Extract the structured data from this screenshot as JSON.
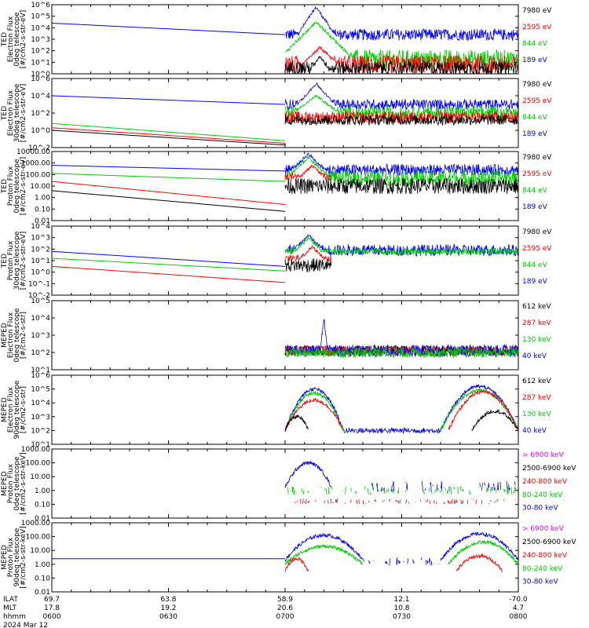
{
  "colors": {
    "black": "#000000",
    "red": "#ff0000",
    "green": "#00cc00",
    "blue": "#0000ff",
    "magenta": "#ff00ff"
  },
  "footer": {
    "row_labels": [
      "ILAT",
      "MLT",
      "hhmm"
    ],
    "date": "2024 Mar 12",
    "columns": [
      {
        "t": 0,
        "ilat": "69.7",
        "mlt": "17.8",
        "hhmm": "0600"
      },
      {
        "t": 30,
        "ilat": "63.8",
        "mlt": "19.2",
        "hhmm": "0630"
      },
      {
        "t": 60,
        "ilat": "58.9",
        "mlt": "20.6",
        "hhmm": "0700"
      },
      {
        "t": 90,
        "ilat": "12.1",
        "mlt": "10.8",
        "hhmm": "0730"
      },
      {
        "t": 120,
        "ilat": "-70.0",
        "mlt": "4.7",
        "hhmm": "0800"
      }
    ]
  },
  "chart_data": [
    {
      "type": "line",
      "ylog": true,
      "ylabel": [
        "TED",
        "Electron Flux",
        "0deg telescope",
        "[#/cm2-s-str-eV]"
      ],
      "ytick_labels": [
        "10^0",
        "10^1",
        "10^2",
        "10^3",
        "10^4",
        "10^5",
        "10^6"
      ],
      "ylim_exp": [
        0,
        6
      ],
      "xlim_minutes": [
        0,
        120
      ],
      "legend": [
        {
          "label": "7980 eV",
          "color": "black"
        },
        {
          "label": "2595 eV",
          "color": "red"
        },
        {
          "label": "844 eV",
          "color": "green"
        },
        {
          "label": "189 eV",
          "color": "blue"
        }
      ],
      "series": [
        {
          "color": "blue",
          "trend": [
            [
              0,
              4.4
            ],
            [
              60,
              3.4
            ]
          ],
          "noisy": {
            "base": 3.4,
            "amp": 0.5,
            "from": 60,
            "to": 120
          },
          "peaks": [
            {
              "t": 68,
              "y": 5.8,
              "w": 2
            }
          ]
        },
        {
          "color": "green",
          "noisy": {
            "base": 1.2,
            "amp": 0.9,
            "from": 60,
            "to": 120
          },
          "peaks": [
            {
              "t": 68,
              "y": 4.5,
              "w": 3
            }
          ]
        },
        {
          "color": "red",
          "noisy": {
            "base": 0.8,
            "amp": 0.8,
            "from": 60,
            "to": 120
          },
          "peaks": [
            {
              "t": 69,
              "y": 2.3,
              "w": 3
            }
          ]
        },
        {
          "color": "black",
          "noisy": {
            "base": 0.5,
            "amp": 0.6,
            "from": 60,
            "to": 120
          },
          "peaks": [
            {
              "t": 69,
              "y": 1.5,
              "w": 2
            }
          ]
        }
      ]
    },
    {
      "type": "line",
      "ylog": true,
      "ylabel": [
        "TED",
        "Electron Flux",
        "30deg telescope",
        "[#/cm2-s-str-eV]"
      ],
      "ytick_labels": [
        "10^-2",
        "10^0",
        "10^2",
        "10^4",
        "10^6"
      ],
      "ylim_exp": [
        -2,
        6
      ],
      "xlim_minutes": [
        0,
        120
      ],
      "legend": [
        {
          "label": "7980 eV",
          "color": "black"
        },
        {
          "label": "2595 eV",
          "color": "red"
        },
        {
          "label": "844 eV",
          "color": "green"
        },
        {
          "label": "189 eV",
          "color": "blue"
        }
      ],
      "series": [
        {
          "color": "blue",
          "trend": [
            [
              0,
              4.0
            ],
            [
              60,
              3.0
            ]
          ],
          "noisy": {
            "base": 3.0,
            "amp": 0.6,
            "from": 60,
            "to": 120
          },
          "peaks": [
            {
              "t": 68,
              "y": 5.4,
              "w": 2
            }
          ]
        },
        {
          "color": "green",
          "trend": [
            [
              0,
              0.8
            ],
            [
              60,
              -1.2
            ]
          ],
          "noisy": {
            "base": 2.0,
            "amp": 0.8,
            "from": 60,
            "to": 120
          },
          "peaks": [
            {
              "t": 68,
              "y": 4.0,
              "w": 3
            }
          ]
        },
        {
          "color": "red",
          "trend": [
            [
              0,
              0.3
            ],
            [
              60,
              -1.5
            ]
          ],
          "noisy": {
            "base": 1.5,
            "amp": 0.7,
            "from": 60,
            "to": 120
          }
        },
        {
          "color": "black",
          "trend": [
            [
              0,
              0.0
            ],
            [
              60,
              -1.7
            ]
          ],
          "noisy": {
            "base": 1.2,
            "amp": 0.6,
            "from": 60,
            "to": 120
          }
        }
      ]
    },
    {
      "type": "line",
      "ylog": true,
      "ylabel": [
        "TED",
        "Proton Flux",
        "0deg telescope",
        "[#/cm2-s-str-eV]"
      ],
      "ytick_labels": [
        "0.01",
        "0.10",
        "1.00",
        "10.00",
        "100.00",
        "1000.00",
        "10000.00"
      ],
      "ylim_exp": [
        -2,
        4
      ],
      "xlim_minutes": [
        0,
        120
      ],
      "legend": [
        {
          "label": "7980 eV",
          "color": "black"
        },
        {
          "label": "2595 eV",
          "color": "red"
        },
        {
          "label": "844 eV",
          "color": "green"
        },
        {
          "label": "189 eV",
          "color": "blue"
        }
      ],
      "series": [
        {
          "color": "blue",
          "trend": [
            [
              0,
              2.8
            ],
            [
              60,
              2.3
            ]
          ],
          "noisy": {
            "base": 2.4,
            "amp": 0.5,
            "from": 60,
            "to": 120
          },
          "peaks": [
            {
              "t": 66,
              "y": 3.8,
              "w": 3
            }
          ]
        },
        {
          "color": "green",
          "trend": [
            [
              0,
              2.1
            ],
            [
              60,
              1.4
            ]
          ],
          "noisy": {
            "base": 1.7,
            "amp": 0.7,
            "from": 60,
            "to": 120
          },
          "peaks": [
            {
              "t": 66,
              "y": 3.5,
              "w": 3
            }
          ]
        },
        {
          "color": "red",
          "trend": [
            [
              0,
              1.4
            ],
            [
              60,
              -0.6
            ]
          ],
          "noisy": {
            "base": 1.8,
            "amp": 0.4,
            "from": 60,
            "to": 72
          },
          "peaks": [
            {
              "t": 67,
              "y": 2.8,
              "w": 3
            }
          ]
        },
        {
          "color": "black",
          "trend": [
            [
              0,
              0.6
            ],
            [
              60,
              -1.2
            ]
          ],
          "noisy": {
            "base": 1.0,
            "amp": 0.7,
            "from": 60,
            "to": 120
          }
        }
      ]
    },
    {
      "type": "line",
      "ylog": true,
      "ylabel": [
        "TED",
        "Proton Flux",
        "30deg telescope",
        "[#/cm2-s-str-eV]"
      ],
      "ytick_labels": [
        "10^-2",
        "10^-1",
        "10^0",
        "10^1",
        "10^2",
        "10^3",
        "10^4"
      ],
      "ylim_exp": [
        -2,
        4
      ],
      "xlim_minutes": [
        0,
        120
      ],
      "legend": [
        {
          "label": "7980 eV",
          "color": "black"
        },
        {
          "label": "2595 eV",
          "color": "red"
        },
        {
          "label": "844 eV",
          "color": "green"
        },
        {
          "label": "189 eV",
          "color": "blue"
        }
      ],
      "series": [
        {
          "color": "blue",
          "trend": [
            [
              0,
              1.8
            ],
            [
              60,
              0.5
            ]
          ],
          "noisy": {
            "base": 1.9,
            "amp": 0.5,
            "from": 60,
            "to": 120
          },
          "peaks": [
            {
              "t": 66,
              "y": 3.2,
              "w": 3
            }
          ]
        },
        {
          "color": "green",
          "trend": [
            [
              0,
              1.2
            ],
            [
              60,
              0.1
            ]
          ],
          "noisy": {
            "base": 1.8,
            "amp": 0.3,
            "from": 60,
            "to": 120
          },
          "peaks": [
            {
              "t": 66,
              "y": 3.0,
              "w": 3
            }
          ]
        },
        {
          "color": "red",
          "trend": [
            [
              0,
              0.5
            ],
            [
              60,
              -0.9
            ]
          ],
          "noisy": {
            "base": 1.2,
            "amp": 0.4,
            "from": 60,
            "to": 72
          },
          "peaks": [
            {
              "t": 67,
              "y": 2.2,
              "w": 3
            }
          ]
        },
        {
          "color": "black",
          "noisy": {
            "base": 0.6,
            "amp": 0.6,
            "from": 60,
            "to": 72
          }
        }
      ]
    },
    {
      "type": "line",
      "ylog": true,
      "ylabel": [
        "MEPED",
        "Electron Flux",
        "0deg telescope",
        "[#/cm2-s-str]"
      ],
      "ytick_labels": [
        "10^1",
        "10^2",
        "10^3",
        "10^4",
        "10^5"
      ],
      "ylim_exp": [
        1,
        5
      ],
      "xlim_minutes": [
        0,
        120
      ],
      "legend": [
        {
          "label": "612 keV",
          "color": "black"
        },
        {
          "label": "287 keV",
          "color": "red"
        },
        {
          "label": "130 keV",
          "color": "green"
        },
        {
          "label": "40 keV",
          "color": "blue"
        }
      ],
      "series": [
        {
          "color": "black",
          "noisy": {
            "base": 2.1,
            "amp": 0.3,
            "from": 60,
            "to": 120
          }
        },
        {
          "color": "red",
          "noisy": {
            "base": 2.1,
            "amp": 0.3,
            "from": 60,
            "to": 120
          }
        },
        {
          "color": "blue",
          "noisy": {
            "base": 2.1,
            "amp": 0.35,
            "from": 60,
            "to": 120
          },
          "peaks": [
            {
              "t": 70,
              "y": 4.0,
              "w": 0.5
            }
          ]
        },
        {
          "color": "green",
          "noisy": {
            "base": 2.0,
            "amp": 0.3,
            "from": 60,
            "to": 120
          }
        }
      ]
    },
    {
      "type": "line",
      "ylog": true,
      "ylabel": [
        "MEPED",
        "Electron Flux",
        "90deg telescope",
        "[#/cm2-s-str]"
      ],
      "ytick_labels": [
        "10^1",
        "10^2",
        "10^3",
        "10^4",
        "10^5",
        "10^6"
      ],
      "ylim_exp": [
        1,
        6
      ],
      "xlim_minutes": [
        0,
        120
      ],
      "legend": [
        {
          "label": "612 keV",
          "color": "black"
        },
        {
          "label": "287 keV",
          "color": "red"
        },
        {
          "label": "130 keV",
          "color": "green"
        },
        {
          "label": "40 keV",
          "color": "blue"
        }
      ],
      "series": [
        {
          "color": "blue",
          "humps": [
            {
              "from": 60,
              "to": 75,
              "peak": 5.0,
              "base": 2.0
            },
            {
              "from": 100,
              "to": 120,
              "peak": 5.2,
              "base": 2.0
            }
          ],
          "noisy": {
            "base": 2.0,
            "amp": 0.2,
            "from": 75,
            "to": 100
          }
        },
        {
          "color": "green",
          "humps": [
            {
              "from": 60,
              "to": 75,
              "peak": 4.7,
              "base": 2.0
            },
            {
              "from": 100,
              "to": 120,
              "peak": 4.9,
              "base": 2.0
            }
          ]
        },
        {
          "color": "red",
          "humps": [
            {
              "from": 60,
              "to": 75,
              "peak": 4.2,
              "base": 2.0
            },
            {
              "from": 102,
              "to": 120,
              "peak": 4.8,
              "base": 2.0
            }
          ]
        },
        {
          "color": "black",
          "humps": [
            {
              "from": 60,
              "to": 66,
              "peak": 3.0,
              "base": 2.0
            },
            {
              "from": 108,
              "to": 120,
              "peak": 3.4,
              "base": 2.0
            }
          ]
        }
      ]
    },
    {
      "type": "line",
      "ylog": true,
      "ylabel": [
        "MEPED",
        "Proton Flux",
        "0deg telescope",
        "[#/cm2-s-str-keV]"
      ],
      "ytick_labels": [
        "0.01",
        "0.10",
        "1.00",
        "10.00",
        "100.00",
        "1000.00"
      ],
      "ylim_exp": [
        -2,
        3
      ],
      "xlim_minutes": [
        0,
        120
      ],
      "legend": [
        {
          "label": "> 6900 keV",
          "color": "magenta"
        },
        {
          "label": "2500-6900 keV",
          "color": "black"
        },
        {
          "label": "240-800 keV",
          "color": "red"
        },
        {
          "label": "80-240 keV",
          "color": "green"
        },
        {
          "label": "30-80 keV",
          "color": "blue"
        }
      ],
      "series": [
        {
          "color": "blue",
          "humps": [
            {
              "from": 60,
              "to": 72,
              "peak": 2.0,
              "base": 0.2
            }
          ],
          "noisy": {
            "base": 0.3,
            "amp": 0.4,
            "from": 82,
            "to": 120,
            "sparse": true
          }
        },
        {
          "color": "green",
          "noisy": {
            "base": 0.0,
            "amp": 0.3,
            "from": 60,
            "to": 120,
            "sparse": true
          }
        },
        {
          "color": "red",
          "noisy": {
            "base": -0.8,
            "amp": 0.2,
            "from": 60,
            "to": 120,
            "sparse": true
          }
        }
      ]
    },
    {
      "type": "line",
      "ylog": true,
      "ylabel": [
        "MEPED",
        "Proton Flux",
        "90deg telescope",
        "[#/cm2-s-str-keV]"
      ],
      "ytick_labels": [
        "0.01",
        "0.10",
        "1.00",
        "10.00",
        "100.00",
        "1000.00"
      ],
      "ylim_exp": [
        -2,
        3
      ],
      "xlim_minutes": [
        0,
        120
      ],
      "legend": [
        {
          "label": "> 6900 keV",
          "color": "magenta"
        },
        {
          "label": "2500-6900 keV",
          "color": "black"
        },
        {
          "label": "240-800 keV",
          "color": "red"
        },
        {
          "label": "80-240 keV",
          "color": "green"
        },
        {
          "label": "30-80 keV",
          "color": "blue"
        }
      ],
      "series": [
        {
          "color": "blue",
          "trend": [
            [
              0,
              0.4
            ],
            [
              60,
              0.4
            ]
          ],
          "humps": [
            {
              "from": 60,
              "to": 80,
              "peak": 2.1,
              "base": 0.3
            },
            {
              "from": 100,
              "to": 120,
              "peak": 2.2,
              "base": 0.3
            }
          ],
          "noisy": {
            "base": 0.2,
            "amp": 0.3,
            "from": 80,
            "to": 100,
            "sparse": true
          }
        },
        {
          "color": "green",
          "humps": [
            {
              "from": 60,
              "to": 80,
              "peak": 1.3,
              "base": 0.0
            },
            {
              "from": 102,
              "to": 120,
              "peak": 1.6,
              "base": 0.0
            }
          ]
        },
        {
          "color": "red",
          "humps": [
            {
              "from": 60,
              "to": 66,
              "peak": 0.4,
              "base": -0.5
            },
            {
              "from": 104,
              "to": 116,
              "peak": 0.6,
              "base": -0.5
            }
          ]
        }
      ]
    }
  ]
}
